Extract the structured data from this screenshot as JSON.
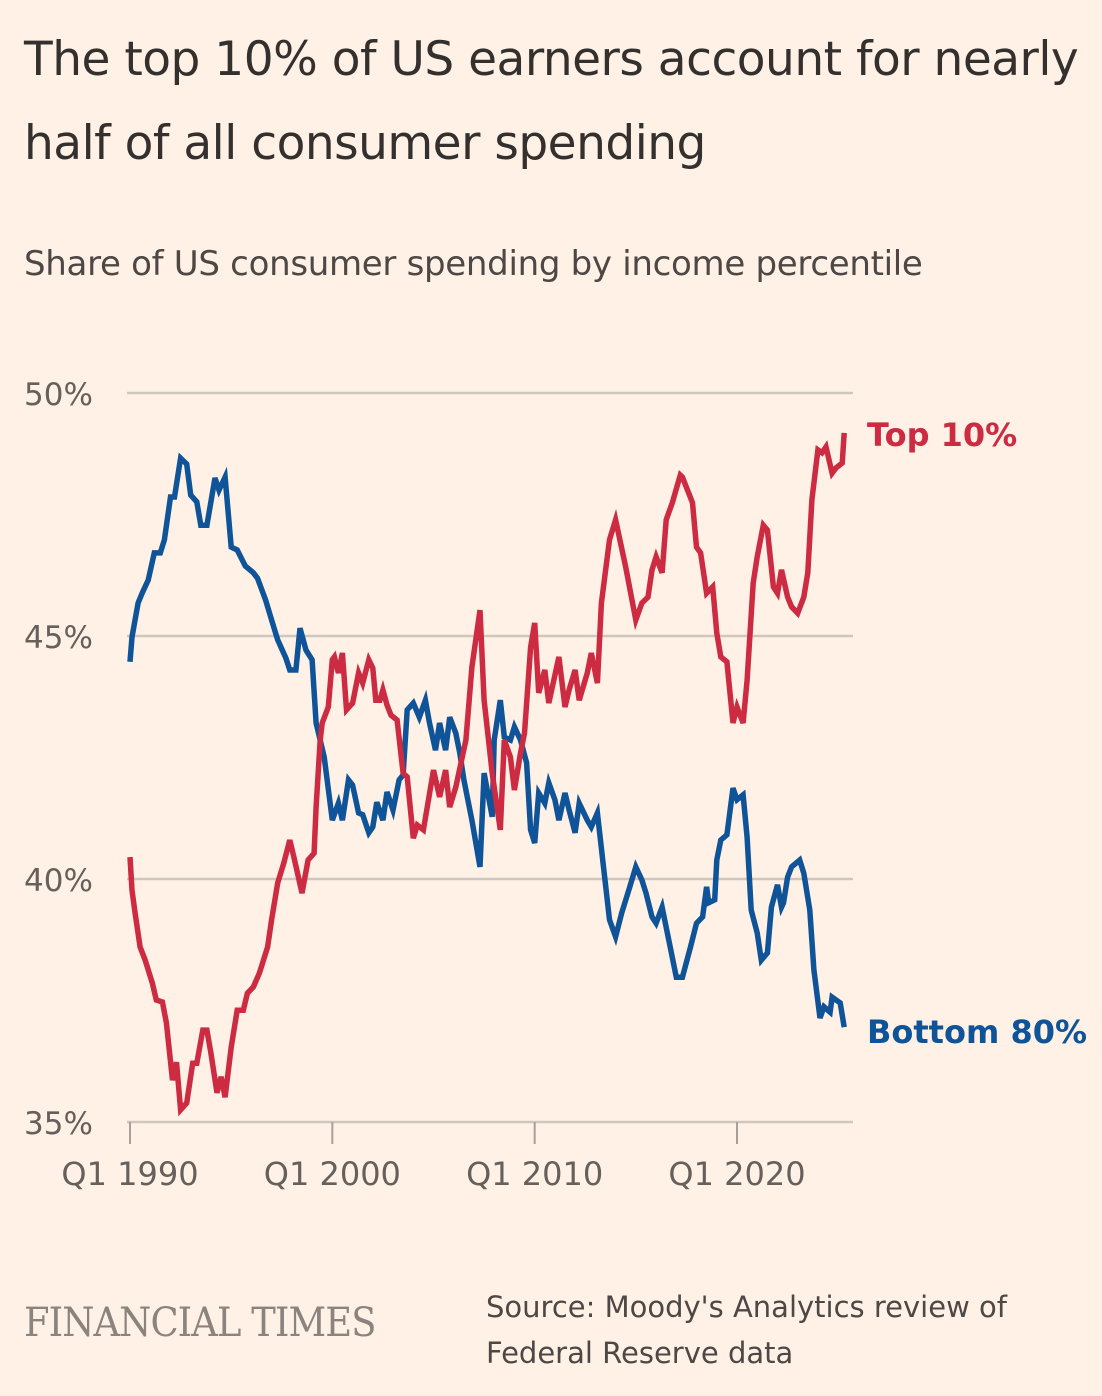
{
  "header": {
    "title": "The top 10% of US earners account for nearly half of all consumer spending",
    "subtitle": "Share of US consumer spending by income percentile"
  },
  "footer": {
    "brand": "FINANCIAL TIMES",
    "source": "Source: Moody's Analytics review of Federal Reserve data"
  },
  "chart_data": {
    "type": "line",
    "title": "The top 10% of US earners account for nearly half of all consumer spending",
    "subtitle": "Share of US consumer spending by income percentile",
    "xlabel": "",
    "ylabel": "",
    "xlim": [
      1990,
      2025.4
    ],
    "ylim": [
      35,
      50
    ],
    "x_ticks": [
      {
        "value": 1990,
        "label": "Q1 1990"
      },
      {
        "value": 2000,
        "label": "Q1 2000"
      },
      {
        "value": 2010,
        "label": "Q1 2010"
      },
      {
        "value": 2020,
        "label": "Q1 2020"
      }
    ],
    "y_ticks": [
      {
        "value": 50,
        "label": "50%"
      },
      {
        "value": 45,
        "label": "45%"
      },
      {
        "value": 40,
        "label": "40%"
      },
      {
        "value": 35,
        "label": "35%"
      }
    ],
    "grid": true,
    "legend": "inline-right",
    "series": [
      {
        "name": "Top 10%",
        "color": "#cc2b42",
        "x": [
          1990.0,
          1990.1,
          1990.25,
          1990.5,
          1990.75,
          1991.1,
          1991.3,
          1991.6,
          1991.8,
          1992.1,
          1992.3,
          1992.5,
          1992.8,
          1993.1,
          1993.3,
          1993.6,
          1993.8,
          1994.0,
          1994.3,
          1994.5,
          1994.7,
          1995.0,
          1995.3,
          1995.6,
          1995.8,
          1996.1,
          1996.4,
          1996.8,
          1997.0,
          1997.3,
          1997.6,
          1997.9,
          1998.1,
          1998.5,
          1998.8,
          1999.1,
          1999.2,
          1999.4,
          1999.5,
          1999.8,
          2000.0,
          2000.1,
          2000.3,
          2000.5,
          2000.7,
          2001.0,
          2001.3,
          2001.5,
          2001.8,
          2002.0,
          2002.15,
          2002.35,
          2002.5,
          2002.7,
          2002.9,
          2003.2,
          2003.5,
          2003.7,
          2004.0,
          2004.2,
          2004.5,
          2005.0,
          2005.3,
          2005.6,
          2005.8,
          2006.1,
          2006.6,
          2006.9,
          2007.3,
          2007.5,
          2007.9,
          2008.3,
          2008.5,
          2008.8,
          2009.0,
          2009.3,
          2009.5,
          2009.8,
          2010.0,
          2010.2,
          2010.5,
          2010.7,
          2011.2,
          2011.5,
          2011.7,
          2012.0,
          2012.2,
          2012.6,
          2012.8,
          2013.1,
          2013.3,
          2013.7,
          2014.0,
          2014.5,
          2015.0,
          2015.3,
          2015.6,
          2015.8,
          2016.0,
          2016.3,
          2016.5,
          2016.8,
          2017.2,
          2017.3,
          2017.8,
          2018.0,
          2018.2,
          2018.5,
          2018.8,
          2019.0,
          2019.2,
          2019.5,
          2019.8,
          2020.0,
          2020.3,
          2020.5,
          2020.8,
          2021.0,
          2021.3,
          2021.5,
          2021.8,
          2022.0,
          2022.2,
          2022.5,
          2022.7,
          2023.0,
          2023.3,
          2023.5,
          2023.7,
          2024.0,
          2024.2,
          2024.4,
          2024.7,
          2024.9,
          2025.2,
          2025.3
        ],
        "values": [
          40.45,
          39.77,
          39.3,
          38.6,
          38.33,
          37.86,
          37.51,
          37.47,
          37.04,
          35.86,
          36.23,
          35.25,
          35.39,
          36.21,
          36.21,
          36.89,
          36.89,
          36.42,
          35.6,
          35.93,
          35.51,
          36.54,
          37.3,
          37.3,
          37.65,
          37.78,
          38.07,
          38.6,
          39.16,
          39.92,
          40.33,
          40.8,
          40.45,
          39.71,
          40.39,
          40.53,
          41.48,
          42.86,
          43.21,
          43.54,
          44.51,
          44.57,
          44.24,
          44.65,
          43.48,
          43.62,
          44.24,
          44.03,
          44.51,
          44.34,
          43.68,
          43.68,
          43.89,
          43.58,
          43.37,
          43.27,
          42.18,
          42.1,
          40.84,
          41.11,
          41.01,
          42.24,
          41.69,
          42.24,
          41.48,
          41.89,
          42.86,
          44.36,
          45.53,
          43.68,
          42.18,
          41.01,
          42.86,
          42.51,
          41.83,
          42.59,
          43.0,
          44.77,
          45.27,
          43.83,
          44.3,
          43.62,
          44.57,
          43.54,
          43.89,
          44.3,
          43.68,
          44.24,
          44.65,
          44.03,
          45.68,
          46.98,
          47.39,
          46.42,
          45.33,
          45.68,
          45.8,
          46.36,
          46.63,
          46.3,
          47.39,
          47.74,
          48.31,
          48.27,
          47.74,
          46.83,
          46.71,
          45.88,
          46.01,
          45.06,
          44.57,
          44.47,
          43.21,
          43.54,
          43.21,
          44.09,
          46.09,
          46.63,
          47.28,
          47.18,
          46.01,
          45.88,
          46.36,
          45.8,
          45.6,
          45.47,
          45.8,
          46.3,
          47.8,
          48.83,
          48.77,
          48.89,
          48.35,
          48.46,
          48.56,
          49.18
        ]
      },
      {
        "name": "Bottom 80%",
        "color": "#0f5499",
        "x": [
          1990.0,
          1990.1,
          1990.4,
          1990.6,
          1990.9,
          1991.2,
          1991.5,
          1991.7,
          1992.0,
          1992.2,
          1992.5,
          1992.8,
          1993.0,
          1993.3,
          1993.5,
          1993.8,
          1994.2,
          1994.4,
          1994.7,
          1995.0,
          1995.3,
          1995.7,
          1996.1,
          1996.3,
          1996.7,
          1997.0,
          1997.3,
          1997.7,
          1997.9,
          1998.2,
          1998.4,
          1998.7,
          1999.0,
          1999.2,
          1999.6,
          2000.0,
          2000.3,
          2000.5,
          2000.8,
          2001.0,
          2001.3,
          2001.5,
          2001.8,
          2002.0,
          2002.2,
          2002.5,
          2002.7,
          2003.0,
          2003.3,
          2003.5,
          2003.7,
          2004.0,
          2004.3,
          2004.6,
          2004.8,
          2005.1,
          2005.3,
          2005.6,
          2005.8,
          2006.1,
          2006.3,
          2006.5,
          2006.9,
          2007.3,
          2007.5,
          2007.9,
          2008.0,
          2008.3,
          2008.5,
          2008.8,
          2009.0,
          2009.3,
          2009.6,
          2009.8,
          2010.0,
          2010.2,
          2010.5,
          2010.7,
          2011.0,
          2011.2,
          2011.5,
          2011.7,
          2012.0,
          2012.2,
          2012.6,
          2012.8,
          2013.1,
          2013.4,
          2013.7,
          2014.0,
          2014.3,
          2014.7,
          2015.0,
          2015.3,
          2015.5,
          2015.8,
          2016.0,
          2016.3,
          2016.7,
          2017.0,
          2017.3,
          2017.7,
          2018.0,
          2018.3,
          2018.5,
          2018.6,
          2018.9,
          2019.0,
          2019.2,
          2019.5,
          2019.8,
          2020.0,
          2020.3,
          2020.5,
          2020.7,
          2021.0,
          2021.2,
          2021.5,
          2021.7,
          2022.0,
          2022.2,
          2022.3,
          2022.5,
          2022.7,
          2023.1,
          2023.3,
          2023.6,
          2023.8,
          2024.1,
          2024.3,
          2024.6,
          2024.7,
          2025.1,
          2025.3
        ],
        "values": [
          44.47,
          44.98,
          45.68,
          45.88,
          46.15,
          46.71,
          46.71,
          46.98,
          47.86,
          47.86,
          48.66,
          48.54,
          47.9,
          47.76,
          47.28,
          47.28,
          48.25,
          48.0,
          48.27,
          46.83,
          46.77,
          46.44,
          46.3,
          46.19,
          45.74,
          45.33,
          44.92,
          44.55,
          44.3,
          44.3,
          45.16,
          44.71,
          44.51,
          43.21,
          42.51,
          41.21,
          41.56,
          41.21,
          42.04,
          41.93,
          41.36,
          41.32,
          40.95,
          41.07,
          41.58,
          41.21,
          41.79,
          41.42,
          42.04,
          42.14,
          43.48,
          43.62,
          43.33,
          43.68,
          43.21,
          42.65,
          43.21,
          42.65,
          43.33,
          43.0,
          42.59,
          42.04,
          41.21,
          40.25,
          42.18,
          41.28,
          42.86,
          43.68,
          42.92,
          42.86,
          43.13,
          42.86,
          42.39,
          41.01,
          40.74,
          41.77,
          41.56,
          41.98,
          41.63,
          41.21,
          41.77,
          41.42,
          40.95,
          41.56,
          41.21,
          41.07,
          41.36,
          40.25,
          39.16,
          38.81,
          39.3,
          39.84,
          40.25,
          39.98,
          39.71,
          39.22,
          39.09,
          39.42,
          38.6,
          37.98,
          37.98,
          38.6,
          39.09,
          39.22,
          39.84,
          39.51,
          39.57,
          40.39,
          40.8,
          40.91,
          41.87,
          41.63,
          41.73,
          40.86,
          39.36,
          38.89,
          38.33,
          38.48,
          39.42,
          39.88,
          39.42,
          39.51,
          40.04,
          40.25,
          40.39,
          40.12,
          39.36,
          38.13,
          37.14,
          37.37,
          37.26,
          37.57,
          37.45,
          36.95
        ]
      }
    ],
    "annotations": [
      {
        "text": "Top 10%",
        "series": "Top 10%",
        "position": "line-end"
      },
      {
        "text": "Bottom 80%",
        "series": "Bottom 80%",
        "position": "line-end"
      }
    ]
  }
}
